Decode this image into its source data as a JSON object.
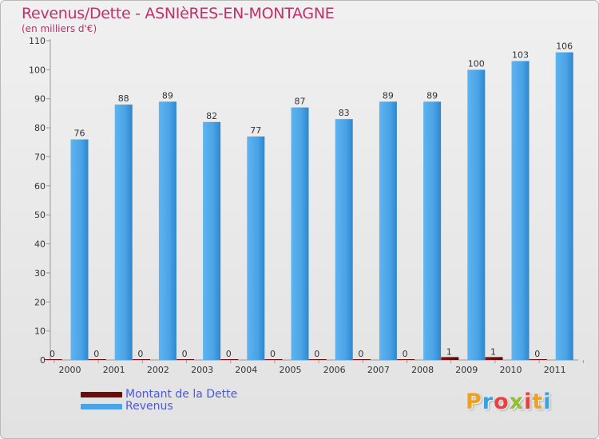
{
  "header": {
    "title": "Revenus/Dette - ASNIèRES-EN-MONTAGNE",
    "subtitle": "(en milliers d'€)"
  },
  "legend": {
    "items": [
      {
        "label": "Montant de la Dette",
        "color": "#6e0b0b"
      },
      {
        "label": "Revenus",
        "color": "#4aa3e6"
      }
    ]
  },
  "logo": {
    "text": "Proxiti"
  },
  "chart_data": {
    "type": "bar",
    "title": "Revenus/Dette - ASNIèRES-EN-MONTAGNE",
    "subtitle": "(en milliers d'€)",
    "categories": [
      "2000",
      "2001",
      "2002",
      "2003",
      "2004",
      "2005",
      "2006",
      "2007",
      "2008",
      "2009",
      "2010",
      "2011"
    ],
    "series": [
      {
        "name": "Montant de la Dette",
        "color": "#6e0b0b",
        "values": [
          0,
          0,
          0,
          0,
          0,
          0,
          0,
          0,
          0,
          1,
          1,
          0
        ]
      },
      {
        "name": "Revenus",
        "color": "#4aa3e6",
        "values": [
          76,
          88,
          89,
          82,
          77,
          87,
          83,
          89,
          89,
          100,
          103,
          106
        ]
      }
    ],
    "yticks": [
      0,
      10,
      20,
      30,
      40,
      50,
      60,
      70,
      80,
      90,
      100,
      110
    ],
    "ylim": [
      0,
      110
    ],
    "grid": false,
    "legend_position": "bottom-left"
  }
}
